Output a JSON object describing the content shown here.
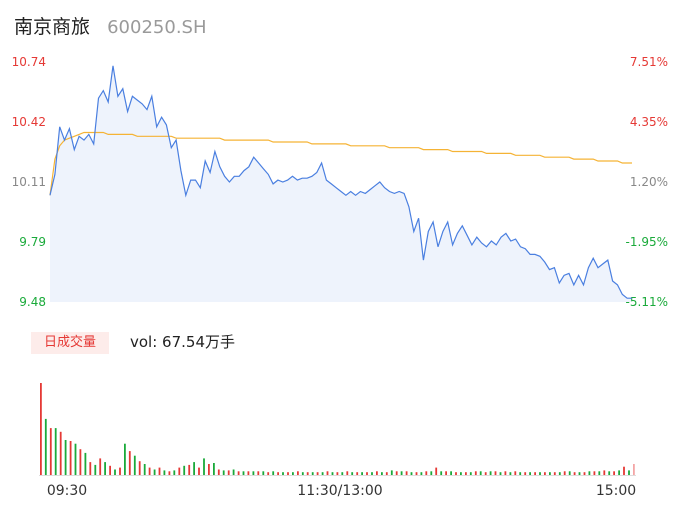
{
  "header": {
    "name": "南京商旅",
    "code": "600250.SH"
  },
  "volume_panel": {
    "badge": "日成交量",
    "summary": "vol: 67.54万手"
  },
  "colors": {
    "price_line": "#4a7fe0",
    "avg_line": "#f5b335",
    "up": "#e53935",
    "down": "#1aaa3a",
    "neutral": "#888888",
    "area": "#eef3fc"
  },
  "chart_data": [
    {
      "type": "line",
      "y_price_ticks": [
        "10.74",
        "10.42",
        "10.11",
        "9.79",
        "9.48"
      ],
      "y_pct_ticks": [
        "7.51%",
        "4.35%",
        "1.20%",
        "-1.95%",
        "-5.11%"
      ],
      "ylim": [
        9.48,
        10.74
      ],
      "x_ticks": [
        "09:30",
        "11:30/13:00",
        "15:00"
      ],
      "series": [
        {
          "key": "price",
          "values": [
            10.04,
            10.15,
            10.4,
            10.33,
            10.39,
            10.28,
            10.35,
            10.33,
            10.36,
            10.31,
            10.55,
            10.59,
            10.53,
            10.72,
            10.56,
            10.6,
            10.48,
            10.56,
            10.54,
            10.52,
            10.49,
            10.56,
            10.4,
            10.45,
            10.41,
            10.29,
            10.33,
            10.17,
            10.04,
            10.12,
            10.12,
            10.08,
            10.22,
            10.16,
            10.27,
            10.19,
            10.14,
            10.11,
            10.14,
            10.14,
            10.17,
            10.19,
            10.24,
            10.21,
            10.18,
            10.15,
            10.1,
            10.12,
            10.11,
            10.12,
            10.14,
            10.12,
            10.13,
            10.13,
            10.14,
            10.16,
            10.21,
            10.12,
            10.1,
            10.08,
            10.06,
            10.04,
            10.06,
            10.04,
            10.06,
            10.05,
            10.07,
            10.09,
            10.11,
            10.08,
            10.06,
            10.05,
            10.06,
            10.05,
            9.98,
            9.85,
            9.92,
            9.7,
            9.85,
            9.9,
            9.77,
            9.85,
            9.9,
            9.78,
            9.84,
            9.88,
            9.83,
            9.78,
            9.82,
            9.79,
            9.77,
            9.8,
            9.78,
            9.82,
            9.84,
            9.8,
            9.81,
            9.77,
            9.76,
            9.73,
            9.73,
            9.72,
            9.69,
            9.65,
            9.66,
            9.58,
            9.62,
            9.63,
            9.57,
            9.62,
            9.57,
            9.66,
            9.71,
            9.66,
            9.68,
            9.7,
            9.59,
            9.57,
            9.52,
            9.5,
            9.5
          ]
        },
        {
          "key": "avg",
          "values": [
            10.04,
            10.23,
            10.3,
            10.33,
            10.34,
            10.35,
            10.36,
            10.37,
            10.37,
            10.37,
            10.37,
            10.37,
            10.36,
            10.36,
            10.36,
            10.36,
            10.36,
            10.36,
            10.35,
            10.35,
            10.35,
            10.35,
            10.35,
            10.35,
            10.35,
            10.35,
            10.34,
            10.34,
            10.34,
            10.34,
            10.34,
            10.34,
            10.34,
            10.34,
            10.34,
            10.34,
            10.33,
            10.33,
            10.33,
            10.33,
            10.33,
            10.33,
            10.33,
            10.33,
            10.33,
            10.33,
            10.32,
            10.32,
            10.32,
            10.32,
            10.32,
            10.32,
            10.32,
            10.32,
            10.31,
            10.31,
            10.31,
            10.31,
            10.31,
            10.31,
            10.31,
            10.31,
            10.3,
            10.3,
            10.3,
            10.3,
            10.3,
            10.3,
            10.3,
            10.3,
            10.29,
            10.29,
            10.29,
            10.29,
            10.29,
            10.29,
            10.29,
            10.28,
            10.28,
            10.28,
            10.28,
            10.28,
            10.28,
            10.27,
            10.27,
            10.27,
            10.27,
            10.27,
            10.27,
            10.27,
            10.26,
            10.26,
            10.26,
            10.26,
            10.26,
            10.26,
            10.25,
            10.25,
            10.25,
            10.25,
            10.25,
            10.25,
            10.24,
            10.24,
            10.24,
            10.24,
            10.24,
            10.24,
            10.23,
            10.23,
            10.23,
            10.23,
            10.23,
            10.22,
            10.22,
            10.22,
            10.22,
            10.22,
            10.21,
            10.21,
            10.21
          ]
        }
      ]
    },
    {
      "type": "bar",
      "volume": [
        100,
        61,
        51,
        51,
        47,
        38,
        37,
        34,
        28,
        24,
        14,
        11,
        18,
        14,
        10,
        6,
        8,
        34,
        26,
        21,
        15,
        12,
        8,
        6,
        8,
        5,
        4,
        5,
        8,
        10,
        11,
        14,
        8,
        18,
        12,
        13,
        6,
        5,
        5,
        6,
        4,
        4,
        4,
        4,
        4,
        4,
        3,
        4,
        3,
        3,
        3,
        3,
        4,
        3,
        3,
        3,
        3,
        3,
        4,
        3,
        3,
        3,
        4,
        3,
        3,
        3,
        3,
        3,
        4,
        3,
        3,
        5,
        4,
        4,
        4,
        3,
        3,
        3,
        4,
        4,
        8,
        4,
        4,
        4,
        3,
        3,
        3,
        3,
        4,
        4,
        3,
        4,
        4,
        3,
        4,
        3,
        4,
        3,
        3,
        3,
        3,
        3,
        3,
        3,
        3,
        3,
        4,
        4,
        3,
        3,
        3,
        4,
        4,
        4,
        5,
        4,
        4,
        5,
        9,
        5,
        12
      ],
      "direction": [
        "up",
        "down",
        "up",
        "down",
        "up",
        "down",
        "up",
        "down",
        "up",
        "down",
        "up",
        "down",
        "up",
        "down",
        "up",
        "down",
        "up",
        "down",
        "up",
        "down",
        "up",
        "down",
        "up",
        "down",
        "up",
        "down",
        "up",
        "down",
        "up",
        "down",
        "up",
        "down",
        "up",
        "down",
        "up",
        "down",
        "up",
        "down",
        "up",
        "down",
        "up",
        "down",
        "up",
        "down",
        "up",
        "down",
        "up",
        "down",
        "up",
        "down",
        "up",
        "down",
        "up",
        "down",
        "up",
        "down",
        "up",
        "down",
        "up",
        "down",
        "up",
        "down",
        "up",
        "down",
        "up",
        "down",
        "up",
        "down",
        "up",
        "down",
        "up",
        "down",
        "up",
        "down",
        "up",
        "down",
        "up",
        "down",
        "up",
        "down",
        "up",
        "down",
        "up",
        "down",
        "up",
        "down",
        "up",
        "down",
        "up",
        "down",
        "up",
        "down",
        "up",
        "down",
        "up",
        "down",
        "up",
        "down",
        "up",
        "down",
        "up",
        "down",
        "up",
        "down",
        "up",
        "down",
        "up",
        "down",
        "up",
        "down",
        "up",
        "down",
        "up",
        "down",
        "up",
        "down",
        "up",
        "down",
        "up",
        "down",
        "neutral"
      ]
    }
  ]
}
